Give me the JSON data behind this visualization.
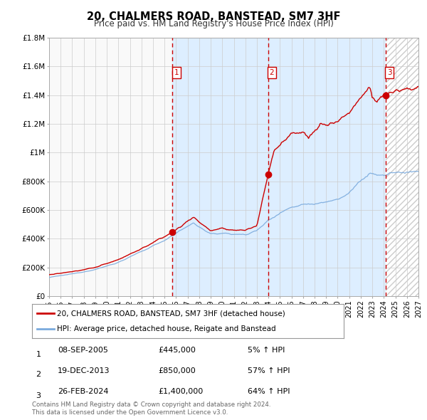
{
  "title": "20, CHALMERS ROAD, BANSTEAD, SM7 3HF",
  "subtitle": "Price paid vs. HM Land Registry's House Price Index (HPI)",
  "x_start_year": 1995,
  "x_end_year": 2027,
  "y_min": 0,
  "y_max": 1800000,
  "y_ticks": [
    0,
    200000,
    400000,
    600000,
    800000,
    1000000,
    1200000,
    1400000,
    1600000,
    1800000
  ],
  "y_labels": [
    "£0",
    "£200K",
    "£400K",
    "£600K",
    "£800K",
    "£1M",
    "£1.2M",
    "£1.4M",
    "£1.6M",
    "£1.8M"
  ],
  "sale_color": "#cc0000",
  "hpi_color": "#7aaadd",
  "shade_color": "#ddeeff",
  "hatch_color": "#cccccc",
  "vline_color": "#cc0000",
  "grid_color": "#cccccc",
  "bg_color": "#f9f9f9",
  "sale_points": [
    {
      "year": 2005.69,
      "value": 445000,
      "label": "1"
    },
    {
      "year": 2013.97,
      "value": 850000,
      "label": "2"
    },
    {
      "year": 2024.16,
      "value": 1400000,
      "label": "3"
    }
  ],
  "vline_years": [
    2005.69,
    2013.97,
    2024.16
  ],
  "legend_sale_label": "20, CHALMERS ROAD, BANSTEAD, SM7 3HF (detached house)",
  "legend_hpi_label": "HPI: Average price, detached house, Reigate and Banstead",
  "table_rows": [
    {
      "num": "1",
      "date": "08-SEP-2005",
      "price": "£445,000",
      "change": "5% ↑ HPI"
    },
    {
      "num": "2",
      "date": "19-DEC-2013",
      "price": "£850,000",
      "change": "57% ↑ HPI"
    },
    {
      "num": "3",
      "date": "26-FEB-2024",
      "price": "£1,400,000",
      "change": "64% ↑ HPI"
    }
  ],
  "footnote1": "Contains HM Land Registry data © Crown copyright and database right 2024.",
  "footnote2": "This data is licensed under the Open Government Licence v3.0."
}
